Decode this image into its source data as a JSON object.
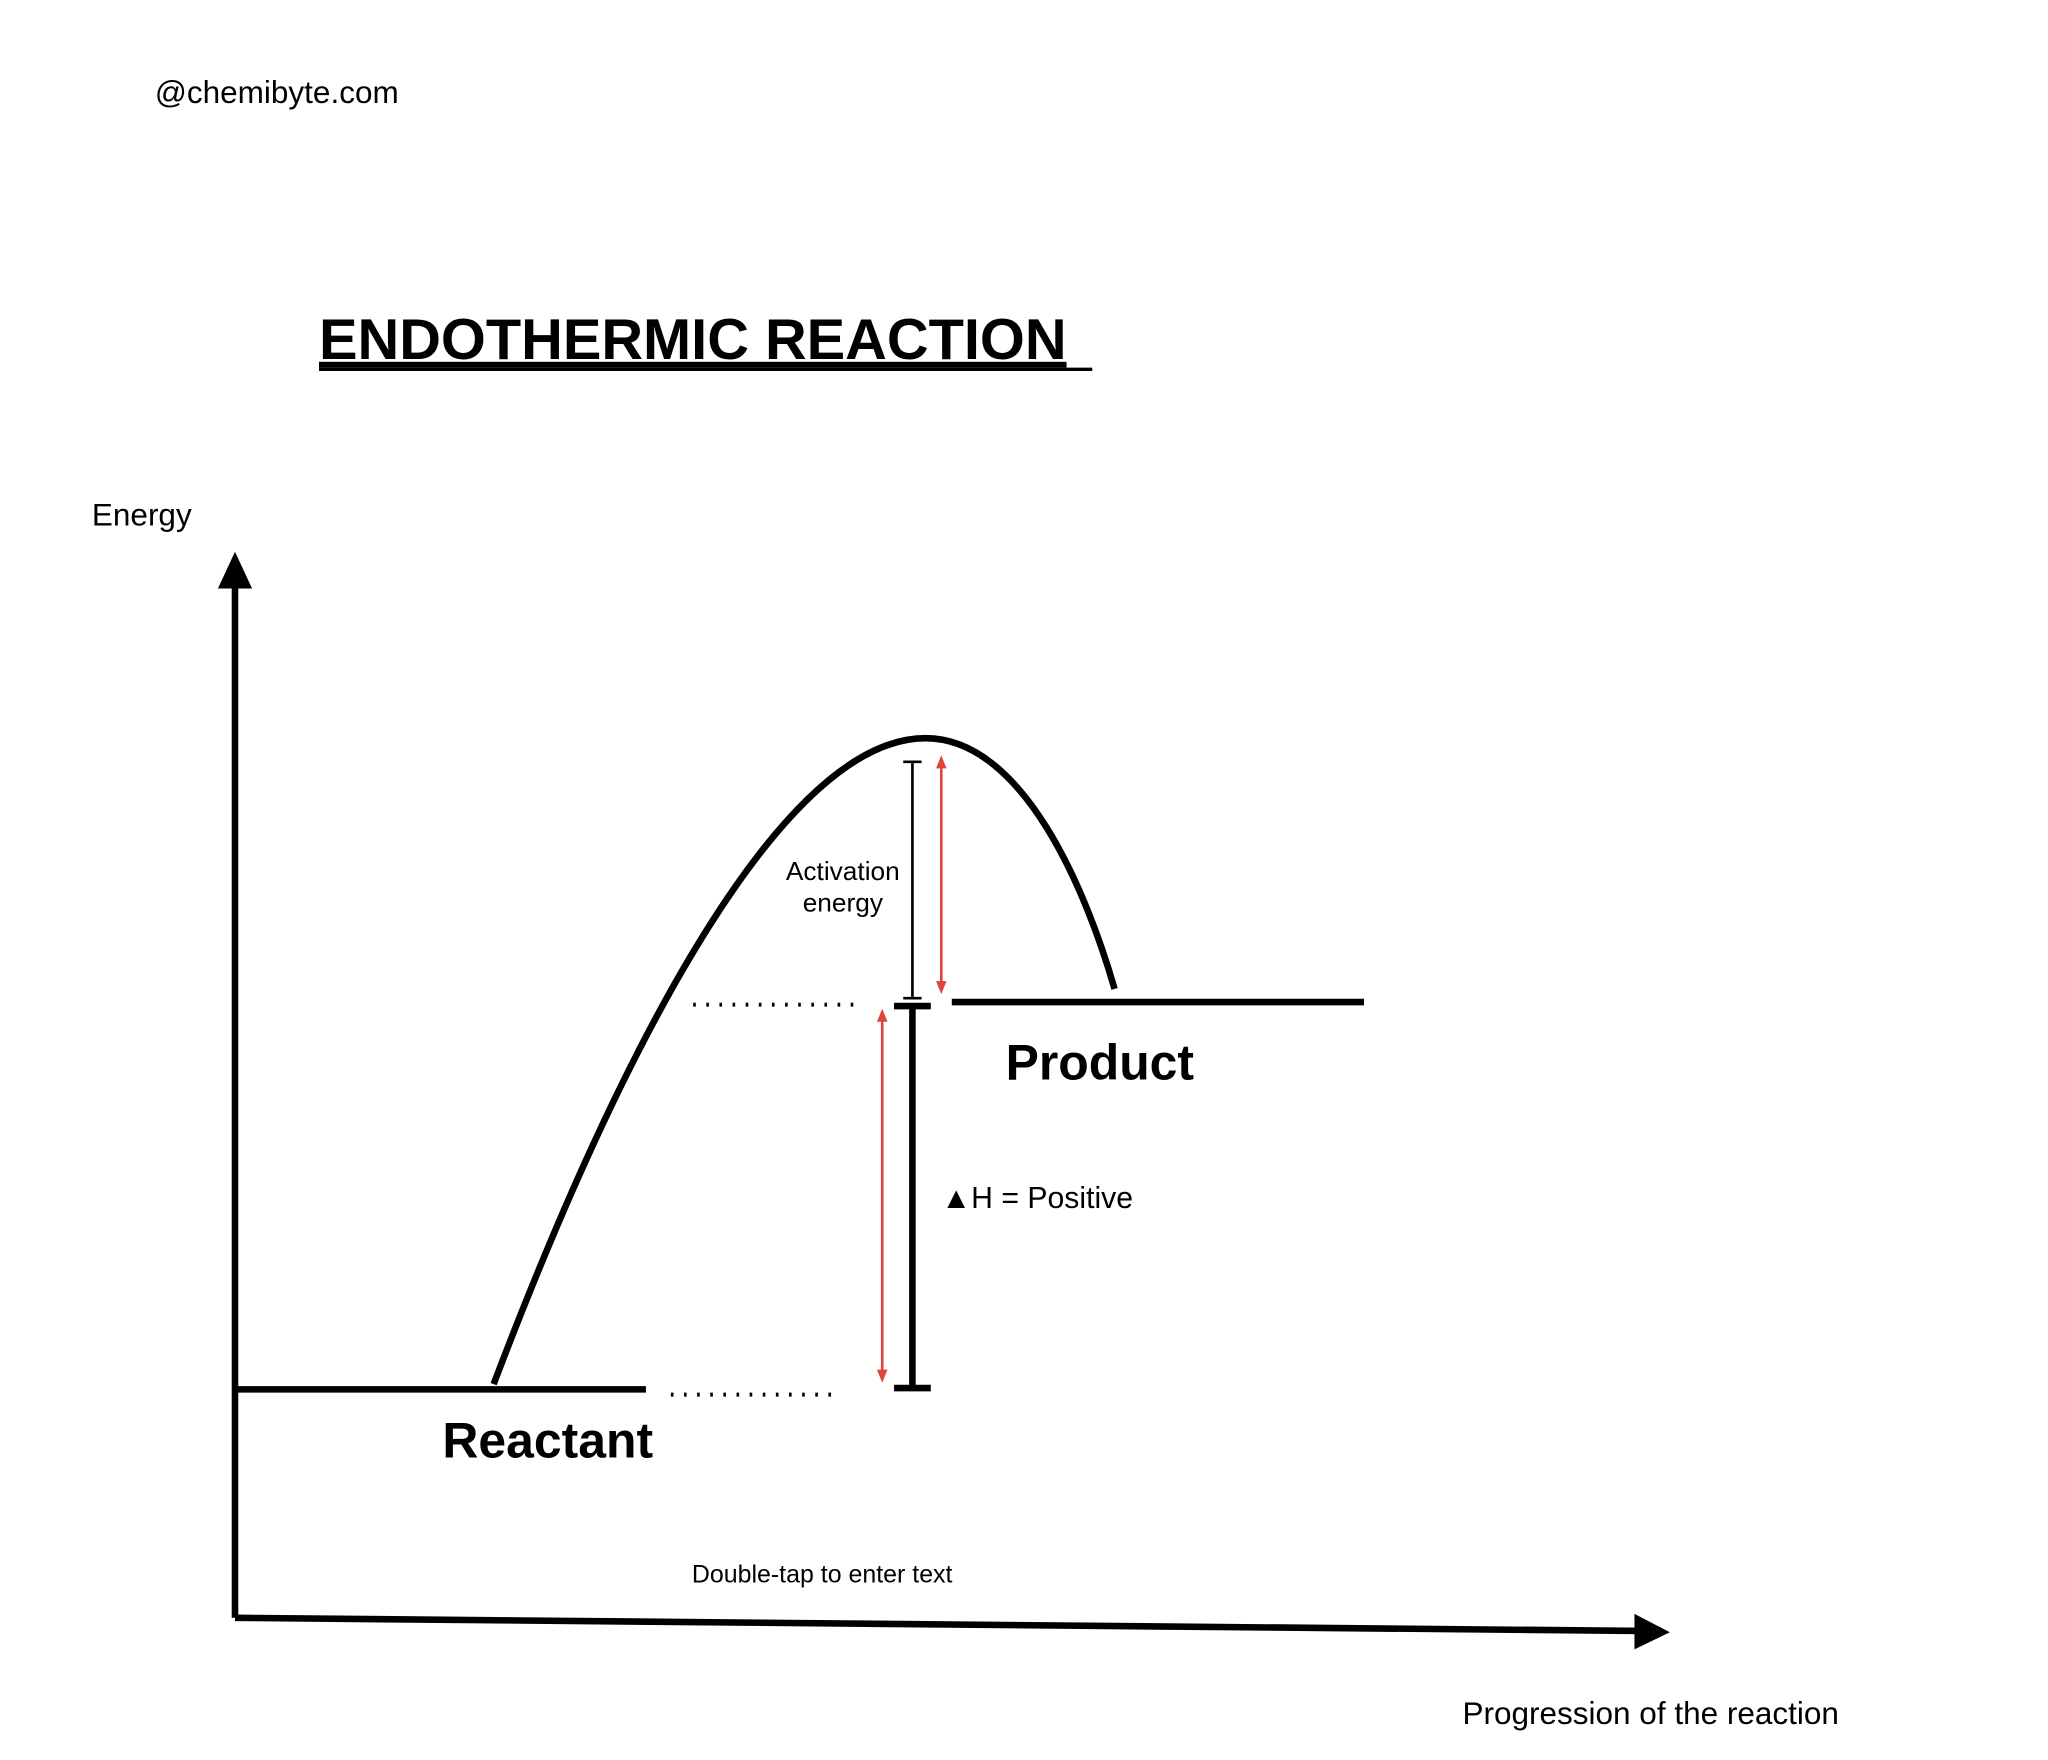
{
  "watermark": "@chemibyte.com",
  "title": "ENDOTHERMIC REACTION",
  "y_axis_label": "Energy",
  "x_axis_label": "Progression of the reaction",
  "activation_label": [
    "Activation",
    "energy"
  ],
  "enthalpy_label": "▲H =  Positive",
  "reactant_label": "Reactant",
  "product_label": "Product",
  "placeholder": "Double-tap to enter text"
}
